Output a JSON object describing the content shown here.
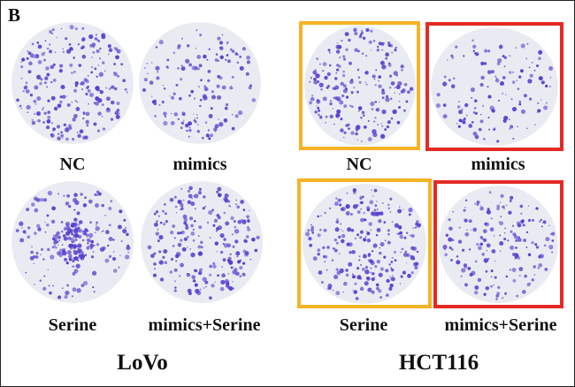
{
  "figure": {
    "panel_letter": "B"
  },
  "groups": [
    {
      "label": "LoVo",
      "conditions": [
        "NC",
        "mimics",
        "Serine",
        "mimics+Serine"
      ]
    },
    {
      "label": "HCT116",
      "conditions": [
        "NC",
        "mimics",
        "Serine",
        "mimics+Serine"
      ]
    }
  ],
  "colors": {
    "colony": "#5a3fcf",
    "dish": "#e9ebf2",
    "highlight_orange": "#f5b325",
    "highlight_red": "#e52a24"
  }
}
